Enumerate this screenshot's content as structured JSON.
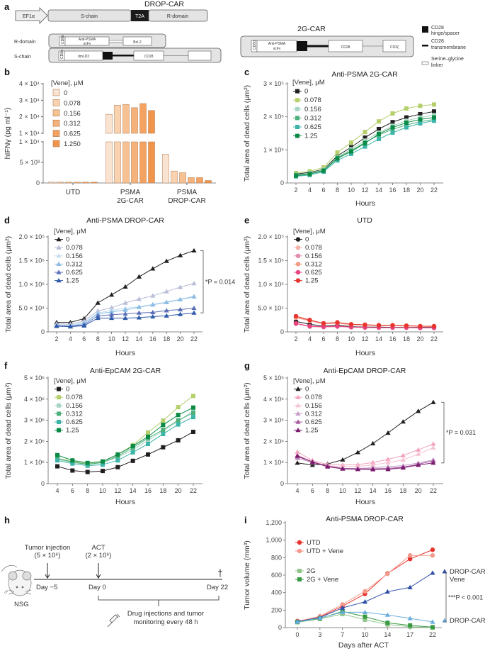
{
  "panel_letters": [
    "a",
    "b",
    "c",
    "d",
    "e",
    "f",
    "g",
    "h",
    "i"
  ],
  "panel_a": {
    "title_drop": "DROP-CAR",
    "promoter": "EF1α",
    "s_chain": "S-chain",
    "t2a": "T2A",
    "r_domain": "R-domain",
    "row_r_label": "R-domain",
    "row_s_label": "S-chain",
    "cd8a": "CD8α",
    "anti_psma": "Anti-PSMA",
    "scfv": "scFv",
    "bcl2": "Bcl-2",
    "dmld3": "dmLD3",
    "cd28": "CD28",
    "title_2g": "2G-CAR",
    "cd3z": "CD3ζ",
    "legend": [
      {
        "label1": "CD28",
        "label2": "hinge/spacer"
      },
      {
        "label1": "CD28",
        "label2": "transmembrane"
      },
      {
        "label1": "Serine–glycine",
        "label2": "linker"
      }
    ]
  },
  "panel_h": {
    "tumor_injection": "Tumor injection",
    "tumor_dose": "(5 × 10⁶)",
    "act": "ACT",
    "act_dose": "(2 × 10⁶)",
    "day_m5": "Day −5",
    "day_0": "Day 0",
    "day_22": "Day 22",
    "mouse_strain": "NSG",
    "male_symbol": "♂",
    "dagger": "†",
    "monitor_line1": "Drug injections and tumor",
    "monitor_line2": "monitoring every 48 h"
  },
  "chart_data": [
    {
      "panel": "b",
      "type": "bar",
      "ylabel": "hIFNγ (pg ml⁻¹)",
      "categories": [
        [
          "UTD"
        ],
        [
          "PSMA",
          "2G-CAR"
        ],
        [
          "PSMA",
          "DROP-CAR"
        ]
      ],
      "ylim": [
        0,
        40000
      ],
      "y_break": 10000,
      "yticks_lower": [
        0,
        5000,
        10000
      ],
      "yticklabels_lower": [
        "0",
        "5 × 10³",
        "1 × 10⁴"
      ],
      "yticks_upper": [
        10000,
        20000,
        30000,
        40000
      ],
      "yticklabels_upper": [
        "1 × 10⁴",
        "2 × 10⁴",
        "3 × 10⁴",
        "4 × 10⁴"
      ],
      "legend_title": "[Vene], μM",
      "series": [
        {
          "name": "0",
          "color": "#fbe3d1",
          "values": [
            200,
            21500,
            7000
          ]
        },
        {
          "name": "0.078",
          "color": "#f9d2b0",
          "values": [
            200,
            27000,
            2900
          ]
        },
        {
          "name": "0.156",
          "color": "#f7c293",
          "values": [
            200,
            27500,
            2500
          ]
        },
        {
          "name": "0.312",
          "color": "#f5b27a",
          "values": [
            200,
            25500,
            1300
          ]
        },
        {
          "name": "0.625",
          "color": "#f3a262",
          "values": [
            200,
            28000,
            1300
          ]
        },
        {
          "name": "1.250",
          "color": "#f0944a",
          "values": [
            200,
            23800,
            600
          ]
        }
      ]
    },
    {
      "panel": "c",
      "type": "line",
      "title": "Anti-PSMA 2G-CAR",
      "marker": "square",
      "xlabel": "Hours",
      "ylabel": "Total area of dead cells (μm²)",
      "x": [
        2,
        4,
        6,
        8,
        10,
        12,
        14,
        16,
        18,
        20,
        22
      ],
      "xlim": [
        2,
        22
      ],
      "ylim": [
        0,
        300000
      ],
      "yticks": [
        0,
        100000,
        200000,
        300000
      ],
      "yticklabels": [
        "0",
        "1 × 10⁵",
        "2 × 10⁵",
        "3 × 10⁵"
      ],
      "legend_title": "[Vene], μM",
      "series": [
        {
          "name": "0",
          "color": "#231f20",
          "values": [
            27000,
            32000,
            41000,
            82000,
            108000,
            137000,
            163000,
            184000,
            198000,
            208000,
            216000
          ]
        },
        {
          "name": "0.078",
          "color": "#b5cf6b",
          "values": [
            30000,
            35000,
            47000,
            92000,
            122000,
            154000,
            186000,
            210000,
            225000,
            233000,
            237000
          ]
        },
        {
          "name": "0.156",
          "color": "#a9d6c4",
          "values": [
            25000,
            30000,
            40000,
            78000,
            102000,
            128000,
            152000,
            173000,
            188000,
            198000,
            205000
          ]
        },
        {
          "name": "0.312",
          "color": "#4daf7c",
          "values": [
            24000,
            28000,
            38000,
            76000,
            98000,
            122000,
            145000,
            162000,
            175000,
            185000,
            192000
          ]
        },
        {
          "name": "0.625",
          "color": "#3cb4a8",
          "values": [
            20000,
            24000,
            34000,
            68000,
            88000,
            110000,
            133000,
            152000,
            168000,
            180000,
            188000
          ]
        },
        {
          "name": "1.25",
          "color": "#0a8a45",
          "values": [
            22000,
            27000,
            37000,
            74000,
            95000,
            120000,
            148000,
            168000,
            182000,
            192000,
            198000
          ]
        }
      ]
    },
    {
      "panel": "d",
      "type": "line",
      "title": "Anti-PSMA DROP-CAR",
      "marker": "triangle",
      "xlabel": "Hours",
      "ylabel": "Total area of dead cells (μm²)",
      "x": [
        2,
        4,
        6,
        8,
        10,
        12,
        14,
        16,
        18,
        20,
        22
      ],
      "xlim": [
        2,
        22
      ],
      "ylim": [
        0,
        200000
      ],
      "yticks": [
        0,
        50000,
        100000,
        150000,
        200000
      ],
      "yticklabels": [
        "0",
        "5.0 × 10⁴",
        "1.0 × 10⁵",
        "1.5 × 10⁵",
        "2.0 × 10⁵"
      ],
      "legend_title": "[Vene], μM",
      "bracket": {
        "series": [
          0,
          5
        ],
        "text": "*P = 0.014"
      },
      "series": [
        {
          "name": "0",
          "color": "#231f20",
          "values": [
            20000,
            20000,
            28000,
            61000,
            78000,
            95000,
            116000,
            133000,
            149000,
            161000,
            171000
          ]
        },
        {
          "name": "0.078",
          "color": "#b8bcd8",
          "values": [
            17000,
            16000,
            23000,
            44000,
            51000,
            61000,
            69000,
            76000,
            85000,
            94000,
            102000
          ]
        },
        {
          "name": "0.156",
          "color": "#c6dff0",
          "values": [
            15000,
            14000,
            20000,
            40000,
            45000,
            50000,
            53000,
            58000,
            63000,
            69000,
            75000
          ]
        },
        {
          "name": "0.312",
          "color": "#8bbde5",
          "values": [
            13000,
            12000,
            18000,
            38000,
            42000,
            46000,
            52000,
            57000,
            62000,
            68000,
            74000
          ]
        },
        {
          "name": "0.625",
          "color": "#5a6fb8",
          "values": [
            13000,
            12000,
            15000,
            34000,
            36000,
            38000,
            40000,
            41000,
            45000,
            47000,
            50000
          ]
        },
        {
          "name": "1.25",
          "color": "#2e5aa8",
          "values": [
            12000,
            11000,
            13000,
            29000,
            29000,
            29000,
            30000,
            32000,
            34000,
            37000,
            40000
          ]
        }
      ]
    },
    {
      "panel": "e",
      "type": "line",
      "title": "UTD",
      "marker": "circle",
      "xlabel": "Hours",
      "ylabel": "Total area of dead cells (μm²)",
      "x": [
        2,
        4,
        6,
        8,
        10,
        12,
        14,
        16,
        18,
        20,
        22
      ],
      "xlim": [
        2,
        22
      ],
      "ylim": [
        0,
        200000
      ],
      "yticks": [
        0,
        50000,
        100000,
        150000,
        200000
      ],
      "yticklabels": [
        "0",
        "5.0 × 10⁴",
        "1.0 × 10⁵",
        "1.5 × 10⁵",
        "2.0 × 10⁵"
      ],
      "legend_title": "[Vene], μM",
      "series": [
        {
          "name": "0",
          "color": "#231f20",
          "values": [
            22000,
            16000,
            12000,
            14000,
            11000,
            10000,
            10000,
            9500,
            9500,
            9500,
            9500
          ]
        },
        {
          "name": "0.078",
          "color": "#f3b3a8",
          "values": [
            30000,
            23000,
            17000,
            18000,
            15000,
            14000,
            13000,
            13000,
            12000,
            12000,
            11000
          ]
        },
        {
          "name": "0.156",
          "color": "#e48bb0",
          "values": [
            17000,
            11000,
            10000,
            11000,
            10000,
            9000,
            9000,
            9000,
            9000,
            8500,
            8500
          ]
        },
        {
          "name": "0.312",
          "color": "#f29a7e",
          "values": [
            31000,
            24000,
            18000,
            19000,
            16000,
            15000,
            14000,
            13000,
            13000,
            12000,
            12000
          ]
        },
        {
          "name": "0.625",
          "color": "#e8437e",
          "values": [
            18000,
            12000,
            11000,
            12000,
            10000,
            9500,
            9000,
            9000,
            9000,
            8500,
            8500
          ]
        },
        {
          "name": "1.25",
          "color": "#e8332e",
          "values": [
            33000,
            25000,
            18000,
            20000,
            16000,
            15000,
            14000,
            14000,
            13000,
            12000,
            12000
          ]
        }
      ]
    },
    {
      "panel": "f",
      "type": "line",
      "title": "Anti-EpCAM 2G-CAR",
      "marker": "square",
      "xlabel": "Hours",
      "ylabel": "Total area of dead cells (μm²)",
      "x": [
        4,
        6,
        8,
        10,
        12,
        14,
        16,
        18,
        20,
        22
      ],
      "xlim": [
        4,
        22
      ],
      "ylim": [
        0,
        5000000
      ],
      "yticks": [
        0,
        1000000,
        2000000,
        3000000,
        4000000,
        5000000
      ],
      "yticklabels": [
        "0",
        "1 × 10⁶",
        "2 × 10⁶",
        "3 × 10⁶",
        "4 × 10⁶",
        "5 × 10⁶"
      ],
      "legend_title": "[Vene], μM",
      "series": [
        {
          "name": "0",
          "color": "#231f20",
          "values": [
            820000,
            620000,
            550000,
            600000,
            780000,
            1080000,
            1380000,
            1720000,
            2050000,
            2450000
          ]
        },
        {
          "name": "0.078",
          "color": "#b5cf6b",
          "values": [
            1200000,
            1050000,
            950000,
            1050000,
            1380000,
            1820000,
            2420000,
            2980000,
            3620000,
            4150000
          ]
        },
        {
          "name": "0.156",
          "color": "#a9d6c4",
          "values": [
            1150000,
            1000000,
            900000,
            1000000,
            1250000,
            1600000,
            2050000,
            2500000,
            2950000,
            3450000
          ]
        },
        {
          "name": "0.312",
          "color": "#4daf7c",
          "values": [
            1200000,
            1020000,
            920000,
            1000000,
            1300000,
            1700000,
            2150000,
            2550000,
            3000000,
            3350000
          ]
        },
        {
          "name": "0.625",
          "color": "#3cb4a8",
          "values": [
            1100000,
            950000,
            850000,
            900000,
            1100000,
            1480000,
            1880000,
            2350000,
            2800000,
            3150000
          ]
        },
        {
          "name": "1.25",
          "color": "#0a8a45",
          "values": [
            1350000,
            1100000,
            980000,
            1050000,
            1380000,
            1780000,
            2220000,
            2780000,
            3250000,
            3600000
          ]
        }
      ]
    },
    {
      "panel": "g",
      "type": "line",
      "title": "Anti-EpCAM DROP-CAR",
      "marker": "triangle",
      "xlabel": "Hours",
      "ylabel": "Total area of dead cells (μm²)",
      "x": [
        4,
        6,
        8,
        10,
        12,
        14,
        16,
        18,
        20,
        22
      ],
      "xlim": [
        4,
        22
      ],
      "ylim": [
        0,
        5000000
      ],
      "yticks": [
        0,
        1000000,
        2000000,
        3000000,
        4000000,
        5000000
      ],
      "yticklabels": [
        "0",
        "1 × 10⁶",
        "2 × 10⁶",
        "3 × 10⁶",
        "4 × 10⁶",
        "5 × 10⁶"
      ],
      "legend_title": "[Vene], μM",
      "bracket": {
        "series": [
          0,
          5
        ],
        "text": "*P = 0.031"
      },
      "series": [
        {
          "name": "0",
          "color": "#231f20",
          "values": [
            980000,
            880000,
            930000,
            1130000,
            1480000,
            1900000,
            2400000,
            2930000,
            3430000,
            3850000
          ]
        },
        {
          "name": "0.078",
          "color": "#f4a3bd",
          "values": [
            1500000,
            1100000,
            900000,
            880000,
            900000,
            1000000,
            1150000,
            1330000,
            1600000,
            1880000
          ]
        },
        {
          "name": "0.156",
          "color": "#f6c3d3",
          "values": [
            1350000,
            1050000,
            850000,
            800000,
            820000,
            880000,
            1000000,
            1120000,
            1400000,
            1700000
          ]
        },
        {
          "name": "0.312",
          "color": "#c89ac8",
          "values": [
            1200000,
            1000000,
            820000,
            720000,
            720000,
            750000,
            800000,
            850000,
            980000,
            1120000
          ]
        },
        {
          "name": "0.625",
          "color": "#a5589e",
          "values": [
            1280000,
            1030000,
            830000,
            720000,
            700000,
            700000,
            720000,
            780000,
            920000,
            1080000
          ]
        },
        {
          "name": "1.25",
          "color": "#7b1c6e",
          "values": [
            1320000,
            1020000,
            800000,
            700000,
            680000,
            670000,
            680000,
            750000,
            880000,
            980000
          ]
        }
      ]
    },
    {
      "panel": "i",
      "type": "line",
      "title": "Anti-PSMA DROP-CAR",
      "x_categorical": true,
      "xlabel": "Days after ACT",
      "ylabel": "Tumor volume (mm³)",
      "x": [
        0,
        3,
        7,
        10,
        14,
        17,
        22
      ],
      "ylim": [
        0,
        1200
      ],
      "yticks": [
        0,
        200,
        400,
        600,
        800,
        1000,
        1200
      ],
      "yticklabels": [
        "0",
        "200",
        "400",
        "600",
        "800",
        "1,000",
        "1,200"
      ],
      "bracket": {
        "series": [
          4,
          5
        ],
        "text": "***P < 0.001"
      },
      "series": [
        {
          "name": "UTD",
          "color": "#e8322e",
          "marker": "circle",
          "label": "legend",
          "values": [
            75,
            120,
            245,
            385,
            620,
            785,
            890
          ]
        },
        {
          "name": "UTD + Vene",
          "color": "#f39a8a",
          "marker": "circle",
          "label": "legend",
          "values": [
            70,
            130,
            265,
            415,
            615,
            825,
            825
          ]
        },
        {
          "name": "2G",
          "color": "#8fc48a",
          "marker": "square",
          "label": "legend",
          "values": [
            60,
            100,
            155,
            90,
            35,
            10,
            0
          ]
        },
        {
          "name": "2G + Vene",
          "color": "#3a9a43",
          "marker": "square",
          "label": "legend",
          "values": [
            65,
            105,
            185,
            125,
            55,
            25,
            5
          ]
        },
        {
          "name": "DROP-CAR + Vene",
          "color": "#2e4fa8",
          "marker": "triangle",
          "label": "end",
          "label_lines": [
            "DROP-CAR +",
            "Vene"
          ],
          "values": [
            70,
            115,
            225,
            295,
            410,
            460,
            625
          ]
        },
        {
          "name": "DROP-CAR",
          "color": "#6aaedf",
          "marker": "triangle",
          "label": "end",
          "label_lines": [
            "DROP-CAR"
          ],
          "values": [
            65,
            110,
            175,
            175,
            145,
            105,
            65
          ]
        }
      ]
    }
  ]
}
